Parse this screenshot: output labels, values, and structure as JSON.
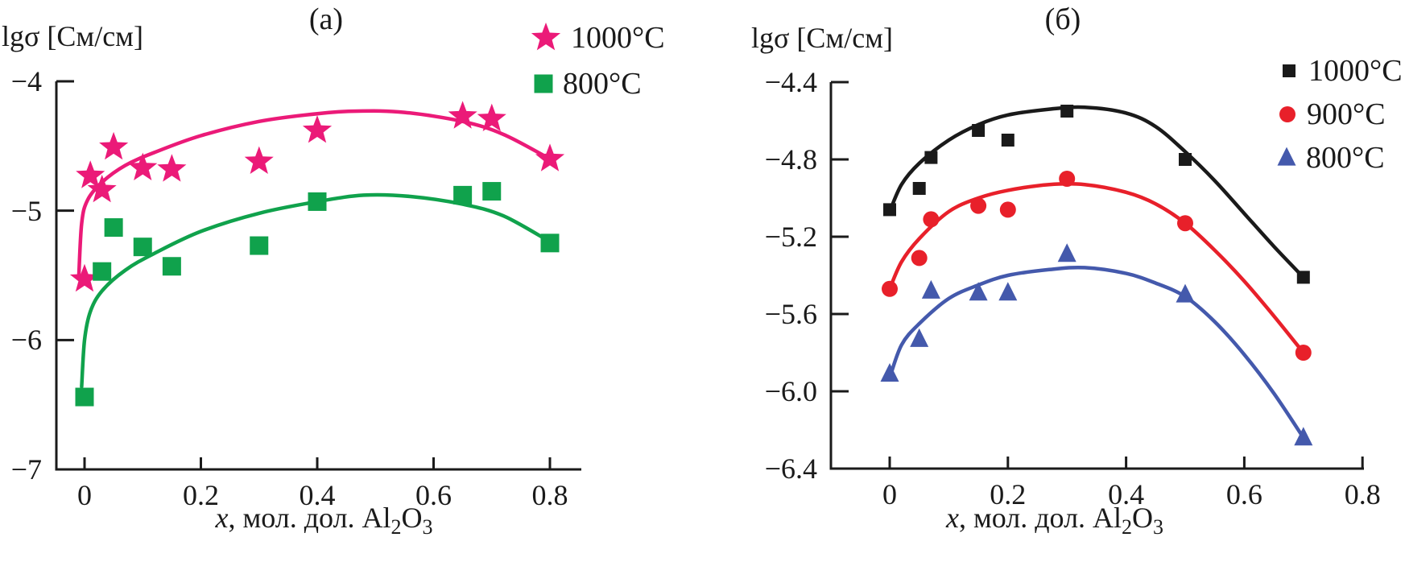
{
  "figure": {
    "background": "#ffffff",
    "text_color": "#1a1a1a"
  },
  "chart_data": [
    {
      "panel_label": "(а)",
      "type": "scatter",
      "ylabel": "lgσ [См/см]",
      "xlabel": "x, мол. дол. Al2O3",
      "xlabel_segments": [
        {
          "t": "x",
          "italic": true
        },
        {
          "t": ", мол. дол. Al"
        },
        {
          "t": "2",
          "sub": true
        },
        {
          "t": "O"
        },
        {
          "t": "3",
          "sub": true
        }
      ],
      "xlim": [
        -0.05,
        0.85
      ],
      "ylim": [
        -7,
        -4
      ],
      "grid": false,
      "legend_position": "top-right-outside",
      "xticks": [
        {
          "v": 0,
          "label": "0"
        },
        {
          "v": 0.2,
          "label": "0.2"
        },
        {
          "v": 0.4,
          "label": "0.4"
        },
        {
          "v": 0.6,
          "label": "0.6"
        },
        {
          "v": 0.8,
          "label": "0.8"
        }
      ],
      "yticks": [
        {
          "v": -4,
          "label": "−4"
        },
        {
          "v": -5,
          "label": "−5"
        },
        {
          "v": -6,
          "label": "−6"
        },
        {
          "v": -7,
          "label": "−7"
        }
      ],
      "series": [
        {
          "name": "1000°C",
          "marker": "star",
          "color": "#EB1A78",
          "points": [
            [
              0,
              -5.53
            ],
            [
              0.01,
              -4.73
            ],
            [
              0.03,
              -4.84
            ],
            [
              0.05,
              -4.51
            ],
            [
              0.1,
              -4.67
            ],
            [
              0.15,
              -4.68
            ],
            [
              0.3,
              -4.62
            ],
            [
              0.4,
              -4.38
            ],
            [
              0.65,
              -4.27
            ],
            [
              0.7,
              -4.29
            ],
            [
              0.8,
              -4.6
            ]
          ],
          "trend": [
            [
              -0.01,
              -5.52
            ],
            [
              -0.005,
              -5.1
            ],
            [
              0.005,
              -4.92
            ],
            [
              0.03,
              -4.78
            ],
            [
              0.07,
              -4.65
            ],
            [
              0.12,
              -4.55
            ],
            [
              0.2,
              -4.42
            ],
            [
              0.3,
              -4.31
            ],
            [
              0.4,
              -4.25
            ],
            [
              0.47,
              -4.23
            ],
            [
              0.55,
              -4.24
            ],
            [
              0.65,
              -4.31
            ],
            [
              0.72,
              -4.41
            ],
            [
              0.8,
              -4.6
            ]
          ]
        },
        {
          "name": "800°C",
          "marker": "square",
          "color": "#10A24C",
          "points": [
            [
              0,
              -6.44
            ],
            [
              0.03,
              -5.47
            ],
            [
              0.05,
              -5.13
            ],
            [
              0.1,
              -5.28
            ],
            [
              0.15,
              -5.43
            ],
            [
              0.3,
              -5.27
            ],
            [
              0.4,
              -4.93
            ],
            [
              0.65,
              -4.88
            ],
            [
              0.7,
              -4.85
            ],
            [
              0.8,
              -5.25
            ]
          ],
          "trend": [
            [
              -0.005,
              -6.36
            ],
            [
              0,
              -6.0
            ],
            [
              0.01,
              -5.78
            ],
            [
              0.03,
              -5.62
            ],
            [
              0.07,
              -5.46
            ],
            [
              0.12,
              -5.33
            ],
            [
              0.2,
              -5.16
            ],
            [
              0.3,
              -5.02
            ],
            [
              0.4,
              -4.93
            ],
            [
              0.48,
              -4.88
            ],
            [
              0.56,
              -4.89
            ],
            [
              0.65,
              -4.95
            ],
            [
              0.72,
              -5.04
            ],
            [
              0.8,
              -5.24
            ]
          ]
        }
      ]
    },
    {
      "panel_label": "(б)",
      "type": "scatter",
      "ylabel": "lgσ [См/см]",
      "xlabel": "x, мол. дол. Al2O3",
      "xlabel_segments": [
        {
          "t": "x",
          "italic": true
        },
        {
          "t": ", мол. дол. Al"
        },
        {
          "t": "2",
          "sub": true
        },
        {
          "t": "O"
        },
        {
          "t": "3",
          "sub": true
        }
      ],
      "xlim": [
        -0.1,
        0.8
      ],
      "ylim": [
        -6.4,
        -4.4
      ],
      "grid": false,
      "legend_position": "top-right-outside",
      "xticks": [
        {
          "v": 0,
          "label": "0"
        },
        {
          "v": 0.2,
          "label": "0.2"
        },
        {
          "v": 0.4,
          "label": "0.4"
        },
        {
          "v": 0.6,
          "label": "0.6"
        },
        {
          "v": 0.8,
          "label": "0.8"
        }
      ],
      "yticks": [
        {
          "v": -4.4,
          "label": "−4.4"
        },
        {
          "v": -4.8,
          "label": "−4.8"
        },
        {
          "v": -5.2,
          "label": "−5.2"
        },
        {
          "v": -5.6,
          "label": "−5.6"
        },
        {
          "v": -6.0,
          "label": "−6.0"
        },
        {
          "v": -6.4,
          "label": "−6.4"
        }
      ],
      "series": [
        {
          "name": "1000°C",
          "marker": "square",
          "color": "#1A1A1A",
          "points": [
            [
              0,
              -5.06
            ],
            [
              0.05,
              -4.95
            ],
            [
              0.07,
              -4.79
            ],
            [
              0.15,
              -4.65
            ],
            [
              0.2,
              -4.7
            ],
            [
              0.3,
              -4.55
            ],
            [
              0.5,
              -4.8
            ],
            [
              0.7,
              -5.41
            ]
          ],
          "trend": [
            [
              0,
              -5.07
            ],
            [
              0.02,
              -4.93
            ],
            [
              0.05,
              -4.82
            ],
            [
              0.1,
              -4.7
            ],
            [
              0.15,
              -4.62
            ],
            [
              0.2,
              -4.57
            ],
            [
              0.27,
              -4.54
            ],
            [
              0.33,
              -4.53
            ],
            [
              0.4,
              -4.56
            ],
            [
              0.45,
              -4.63
            ],
            [
              0.5,
              -4.76
            ],
            [
              0.55,
              -4.91
            ],
            [
              0.6,
              -5.08
            ],
            [
              0.65,
              -5.25
            ],
            [
              0.7,
              -5.41
            ]
          ]
        },
        {
          "name": "900°C",
          "marker": "circle",
          "color": "#E8202A",
          "points": [
            [
              0,
              -5.47
            ],
            [
              0.05,
              -5.31
            ],
            [
              0.07,
              -5.11
            ],
            [
              0.15,
              -5.04
            ],
            [
              0.2,
              -5.06
            ],
            [
              0.3,
              -4.9
            ],
            [
              0.5,
              -5.13
            ],
            [
              0.7,
              -5.8
            ]
          ],
          "trend": [
            [
              0,
              -5.47
            ],
            [
              0.02,
              -5.33
            ],
            [
              0.05,
              -5.21
            ],
            [
              0.1,
              -5.07
            ],
            [
              0.15,
              -5.0
            ],
            [
              0.2,
              -4.96
            ],
            [
              0.27,
              -4.93
            ],
            [
              0.33,
              -4.93
            ],
            [
              0.4,
              -4.97
            ],
            [
              0.45,
              -5.03
            ],
            [
              0.5,
              -5.13
            ],
            [
              0.55,
              -5.27
            ],
            [
              0.6,
              -5.43
            ],
            [
              0.65,
              -5.61
            ],
            [
              0.7,
              -5.8
            ]
          ]
        },
        {
          "name": "800°C",
          "marker": "triangle",
          "color": "#4459AC",
          "points": [
            [
              0,
              -5.91
            ],
            [
              0.05,
              -5.73
            ],
            [
              0.07,
              -5.48
            ],
            [
              0.15,
              -5.49
            ],
            [
              0.2,
              -5.49
            ],
            [
              0.3,
              -5.29
            ],
            [
              0.5,
              -5.5
            ],
            [
              0.7,
              -6.24
            ]
          ],
          "trend": [
            [
              0,
              -5.93
            ],
            [
              0.02,
              -5.76
            ],
            [
              0.05,
              -5.65
            ],
            [
              0.1,
              -5.52
            ],
            [
              0.15,
              -5.45
            ],
            [
              0.2,
              -5.4
            ],
            [
              0.27,
              -5.37
            ],
            [
              0.33,
              -5.36
            ],
            [
              0.4,
              -5.39
            ],
            [
              0.45,
              -5.44
            ],
            [
              0.5,
              -5.51
            ],
            [
              0.55,
              -5.64
            ],
            [
              0.6,
              -5.81
            ],
            [
              0.65,
              -6.01
            ],
            [
              0.7,
              -6.24
            ]
          ]
        }
      ]
    }
  ]
}
